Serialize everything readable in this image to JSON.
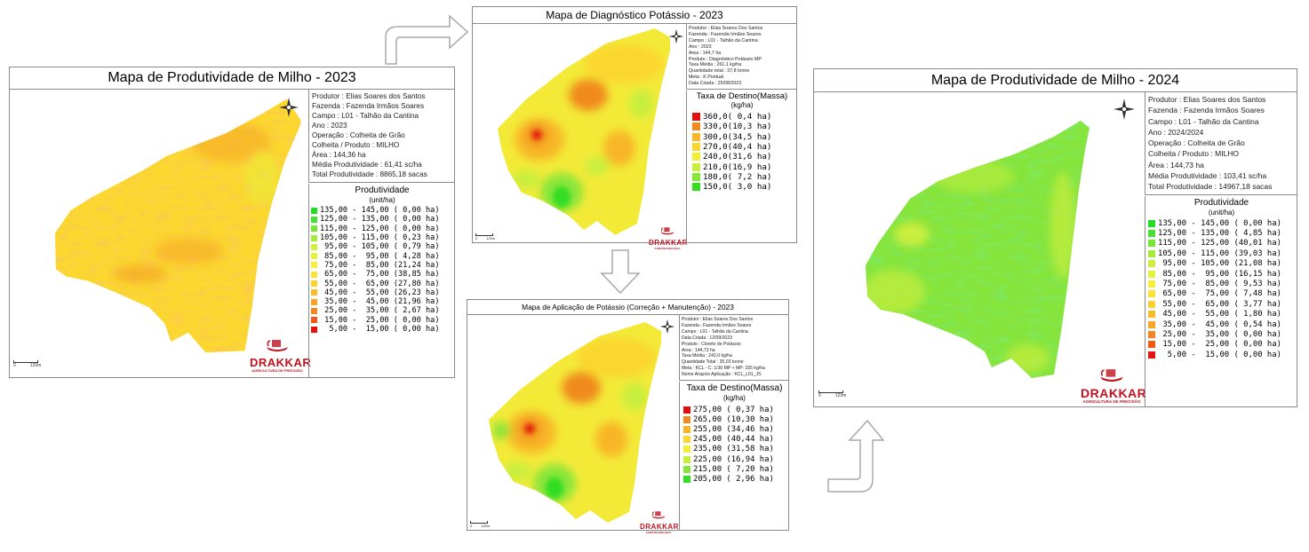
{
  "map_left": {
    "title": "Mapa de Produtividade de Milho - 2023",
    "info": [
      "Produtor : Elias Soares dos Santos",
      "Fazenda  : Fazenda Irmãos Soares",
      "Campo  : L01 - Talhão da Cantina",
      "Ano : 2023",
      "Operação  : Colheita de Grão",
      "Colheita / Produto : MILHO",
      "Área : 144,36 ha",
      "Média Produtividade : 61,41 sc/ha",
      "Total Produtividade : 8865,18 sacas"
    ],
    "legend_title": "Produtividade",
    "legend_unit": "(unit/ha)",
    "legend": [
      {
        "label": "135,00 - 145,00 ( 0,00 ha)",
        "color": "#22dd22"
      },
      {
        "label": "125,00 - 135,00 ( 0,00 ha)",
        "color": "#44e033"
      },
      {
        "label": "115,00 - 125,00 ( 0,00 ha)",
        "color": "#77e63a"
      },
      {
        "label": "105,00 - 115,00 ( 0,23 ha)",
        "color": "#a4ec3c"
      },
      {
        "label": " 95,00 - 105,00 ( 0,79 ha)",
        "color": "#cdf03e"
      },
      {
        "label": " 85,00 -  95,00 ( 4,28 ha)",
        "color": "#e8f23c"
      },
      {
        "label": " 75,00 -  85,00 (21,24 ha)",
        "color": "#f6ee3a"
      },
      {
        "label": " 65,00 -  75,00 (38,85 ha)",
        "color": "#fbe234"
      },
      {
        "label": " 55,00 -  65,00 (27,80 ha)",
        "color": "#fcd12e"
      },
      {
        "label": " 45,00 -  55,00 (26,23 ha)",
        "color": "#fbbd29"
      },
      {
        "label": " 35,00 -  45,00 (21,96 ha)",
        "color": "#f9a426"
      },
      {
        "label": " 25,00 -  35,00 ( 2,67 ha)",
        "color": "#f4861f"
      },
      {
        "label": " 15,00 -  25,00 ( 0,00 ha)",
        "color": "#ee5a18"
      },
      {
        "label": "  5,00 -  15,00 ( 0,00 ha)",
        "color": "#e51010"
      }
    ],
    "logo_name": "DRAKKAR",
    "logo_sub": "AGRICULTURA DE PRECISÃO",
    "scale_zero": "0",
    "scale_label": "120m"
  },
  "map_top": {
    "title": "Mapa de Diagnóstico Potássio - 2023",
    "info": [
      "Produtor : Elias Soares Dos Santos",
      "Fazenda : Fazenda Irmãos Soares",
      "Campo : L01 - Talhão da Cantina",
      "Ano : 2023",
      "Área : 144,7 ha",
      "Produto : Diagnóstico Potássio MP",
      "Taxa Média : 261,1 kg/ha",
      "Quantidade total : 37,8 tonne",
      "Meta : K Pontual",
      "Data Criada : 25/08/2023"
    ],
    "legend_title": "Taxa de Destino(Massa)",
    "legend_unit": "(kg/ha)",
    "legend": [
      {
        "label": "360,0( 0,4 ha)",
        "color": "#e01010"
      },
      {
        "label": "330,0(10,3 ha)",
        "color": "#f08a1e"
      },
      {
        "label": "300,0(34,5 ha)",
        "color": "#f8b628"
      },
      {
        "label": "270,0(40,4 ha)",
        "color": "#fbd62e"
      },
      {
        "label": "240,0(31,6 ha)",
        "color": "#f2ee38"
      },
      {
        "label": "210,0(16,9 ha)",
        "color": "#c8ee3c"
      },
      {
        "label": "180,0( 7,2 ha)",
        "color": "#88e63a"
      },
      {
        "label": "150,0( 3,0 ha)",
        "color": "#33dd22"
      }
    ],
    "logo_name": "DRAKKAR",
    "logo_sub": "AGROTECNOLOGIA",
    "scale_zero": "0",
    "scale_label": "120m"
  },
  "map_bottom": {
    "title": "Mapa de Aplicação de Potássio (Correção + Manutenção) - 2023",
    "info": [
      "Produtor : Elias Soares Dos Santos",
      "Fazenda : Fazenda Irmãos Soares",
      "Campo : L01 - Talhão da Cantina",
      "Data Criada : 12/09/2023",
      "Produto : Cloreto de Potássio",
      "Área : 144,73 ha",
      "Taxa Média : 242,0 kg/ha",
      "Quantidade Total : 35,03 tonne",
      "Meta : KCL - C: 1/30 MP + MP: 155 kg/ha",
      "Nome Arquivo Aplicação : KCL_L01_JS"
    ],
    "legend_title": "Taxa de Destino(Massa)",
    "legend_unit": "(kg/ha)",
    "legend": [
      {
        "label": "275,00 ( 0,37 ha)",
        "color": "#e01010"
      },
      {
        "label": "265,00 (10,30 ha)",
        "color": "#f08a1e"
      },
      {
        "label": "255,00 (34,46 ha)",
        "color": "#f8b628"
      },
      {
        "label": "245,00 (40,44 ha)",
        "color": "#fbd62e"
      },
      {
        "label": "235,00 (31,58 ha)",
        "color": "#f2ee38"
      },
      {
        "label": "225,00 (16,94 ha)",
        "color": "#c8ee3c"
      },
      {
        "label": "215,00 ( 7,20 ha)",
        "color": "#88e63a"
      },
      {
        "label": "205,00 ( 2,96 ha)",
        "color": "#33dd22"
      }
    ],
    "logo_name": "DRAKKAR",
    "logo_sub": "AGROTECNOLOGIA",
    "scale_zero": "0",
    "scale_label": "120m"
  },
  "map_right": {
    "title": "Mapa de Produtividade de Milho - 2024",
    "info": [
      "Produtor : Elias Soares dos Santos",
      "Fazenda  : Fazenda Irmãos Soares",
      "Campo  : L01 - Talhão da Cantina",
      "Ano : 2024/2024",
      "Operação  : Colheita de Grão",
      "Colheita / Produto : MILHO",
      "Área : 144,73 ha",
      "Média Produtividade : 103,41 sc/ha",
      "Total Produtividade : 14967,18 sacas"
    ],
    "legend_title": "Produtividade",
    "legend_unit": "(unit/ha)",
    "legend": [
      {
        "label": "135,00 - 145,00 ( 0,00 ha)",
        "color": "#22dd22"
      },
      {
        "label": "125,00 - 135,00 ( 4,85 ha)",
        "color": "#44e033"
      },
      {
        "label": "115,00 - 125,00 (40,01 ha)",
        "color": "#77e63a"
      },
      {
        "label": "105,00 - 115,00 (39,03 ha)",
        "color": "#a4ec3c"
      },
      {
        "label": " 95,00 - 105,00 (21,08 ha)",
        "color": "#cdf03e"
      },
      {
        "label": " 85,00 -  95,00 (16,15 ha)",
        "color": "#e8f23c"
      },
      {
        "label": " 75,00 -  85,00 ( 9,53 ha)",
        "color": "#f6ee3a"
      },
      {
        "label": " 65,00 -  75,00 ( 7,48 ha)",
        "color": "#fbe234"
      },
      {
        "label": " 55,00 -  65,00 ( 3,77 ha)",
        "color": "#fcd12e"
      },
      {
        "label": " 45,00 -  55,00 ( 1,80 ha)",
        "color": "#fbbd29"
      },
      {
        "label": " 35,00 -  45,00 ( 0,54 ha)",
        "color": "#f9a426"
      },
      {
        "label": " 25,00 -  35,00 ( 0,00 ha)",
        "color": "#f4861f"
      },
      {
        "label": " 15,00 -  25,00 ( 0,00 ha)",
        "color": "#ee5a18"
      },
      {
        "label": "  5,00 -  15,00 ( 0,00 ha)",
        "color": "#e51010"
      }
    ],
    "logo_name": "DRAKKAR",
    "logo_sub": "AGRICULTURA DE PRECISÃO",
    "scale_zero": "0",
    "scale_label": "120m"
  },
  "colors": {
    "panel_border": "#8a8a8a",
    "arrow_stroke": "#a8a8a8",
    "brand_red": "#c1121f"
  },
  "flow_arrows": [
    "arrow-up-right-icon",
    "arrow-down-icon",
    "arrow-up-right-icon"
  ],
  "field_icons": [
    "compass-rose-icon",
    "drakkar-ship-logo-icon"
  ]
}
